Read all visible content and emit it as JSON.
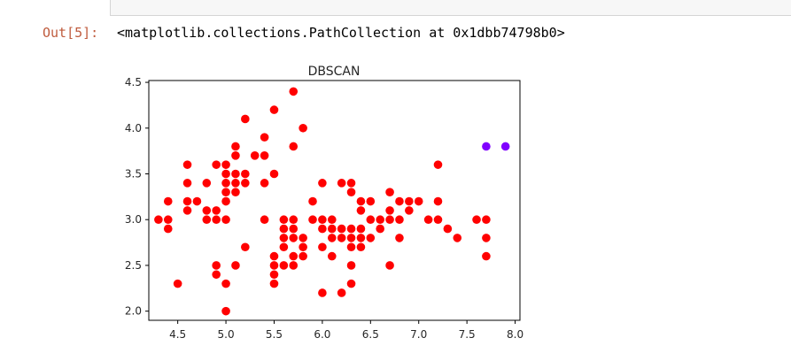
{
  "notebook": {
    "output_prompt": "Out[5]:",
    "output_text": "<matplotlib.collections.PathCollection at 0x1dbb74798b0>"
  },
  "colors": {
    "prompt": "#bf5b3d",
    "cluster_main": "#ff0000",
    "cluster_noise": "#8000ff"
  },
  "chart_data": {
    "type": "scatter",
    "title": "DBSCAN",
    "xlabel": "",
    "ylabel": "",
    "xlim": [
      4.2,
      8.05
    ],
    "ylim": [
      1.9,
      4.52
    ],
    "xticks": [
      "4.5",
      "5.0",
      "5.5",
      "6.0",
      "6.5",
      "7.0",
      "7.5",
      "8.0"
    ],
    "yticks": [
      "2.0",
      "2.5",
      "3.0",
      "3.5",
      "4.0",
      "4.5"
    ],
    "series": [
      {
        "color": "#ff0000",
        "points": [
          [
            4.3,
            3.0
          ],
          [
            4.4,
            2.9
          ],
          [
            4.4,
            3.0
          ],
          [
            4.4,
            3.2
          ],
          [
            4.5,
            2.3
          ],
          [
            4.6,
            3.1
          ],
          [
            4.6,
            3.2
          ],
          [
            4.6,
            3.4
          ],
          [
            4.6,
            3.6
          ],
          [
            4.7,
            3.2
          ],
          [
            4.8,
            3.0
          ],
          [
            4.8,
            3.1
          ],
          [
            4.8,
            3.4
          ],
          [
            4.9,
            2.4
          ],
          [
            4.9,
            2.5
          ],
          [
            4.9,
            3.0
          ],
          [
            4.9,
            3.1
          ],
          [
            4.9,
            3.6
          ],
          [
            5.0,
            2.0
          ],
          [
            5.0,
            2.3
          ],
          [
            5.0,
            3.0
          ],
          [
            5.0,
            3.2
          ],
          [
            5.0,
            3.3
          ],
          [
            5.0,
            3.4
          ],
          [
            5.0,
            3.5
          ],
          [
            5.0,
            3.6
          ],
          [
            5.1,
            2.5
          ],
          [
            5.1,
            3.3
          ],
          [
            5.1,
            3.4
          ],
          [
            5.1,
            3.5
          ],
          [
            5.1,
            3.7
          ],
          [
            5.1,
            3.8
          ],
          [
            5.2,
            2.7
          ],
          [
            5.2,
            3.4
          ],
          [
            5.2,
            3.5
          ],
          [
            5.2,
            4.1
          ],
          [
            5.3,
            3.7
          ],
          [
            5.4,
            3.0
          ],
          [
            5.4,
            3.4
          ],
          [
            5.4,
            3.7
          ],
          [
            5.4,
            3.9
          ],
          [
            5.5,
            2.3
          ],
          [
            5.5,
            2.4
          ],
          [
            5.5,
            2.5
          ],
          [
            5.5,
            2.6
          ],
          [
            5.5,
            3.5
          ],
          [
            5.5,
            4.2
          ],
          [
            5.6,
            2.5
          ],
          [
            5.6,
            2.7
          ],
          [
            5.6,
            2.8
          ],
          [
            5.6,
            2.9
          ],
          [
            5.6,
            3.0
          ],
          [
            5.7,
            2.5
          ],
          [
            5.7,
            2.6
          ],
          [
            5.7,
            2.8
          ],
          [
            5.7,
            2.9
          ],
          [
            5.7,
            3.0
          ],
          [
            5.7,
            3.8
          ],
          [
            5.7,
            4.4
          ],
          [
            5.8,
            2.6
          ],
          [
            5.8,
            2.7
          ],
          [
            5.8,
            2.8
          ],
          [
            5.8,
            4.0
          ],
          [
            5.9,
            3.0
          ],
          [
            5.9,
            3.2
          ],
          [
            6.0,
            2.2
          ],
          [
            6.0,
            2.7
          ],
          [
            6.0,
            2.9
          ],
          [
            6.0,
            3.0
          ],
          [
            6.0,
            3.4
          ],
          [
            6.1,
            2.6
          ],
          [
            6.1,
            2.8
          ],
          [
            6.1,
            2.9
          ],
          [
            6.1,
            3.0
          ],
          [
            6.2,
            2.2
          ],
          [
            6.2,
            2.8
          ],
          [
            6.2,
            2.9
          ],
          [
            6.2,
            3.4
          ],
          [
            6.3,
            2.3
          ],
          [
            6.3,
            2.5
          ],
          [
            6.3,
            2.7
          ],
          [
            6.3,
            2.8
          ],
          [
            6.3,
            2.9
          ],
          [
            6.3,
            3.3
          ],
          [
            6.3,
            3.4
          ],
          [
            6.4,
            2.7
          ],
          [
            6.4,
            2.8
          ],
          [
            6.4,
            2.9
          ],
          [
            6.4,
            3.1
          ],
          [
            6.4,
            3.2
          ],
          [
            6.5,
            2.8
          ],
          [
            6.5,
            3.0
          ],
          [
            6.5,
            3.2
          ],
          [
            6.6,
            2.9
          ],
          [
            6.6,
            3.0
          ],
          [
            6.7,
            2.5
          ],
          [
            6.7,
            3.0
          ],
          [
            6.7,
            3.1
          ],
          [
            6.7,
            3.3
          ],
          [
            6.8,
            2.8
          ],
          [
            6.8,
            3.0
          ],
          [
            6.8,
            3.2
          ],
          [
            6.9,
            3.1
          ],
          [
            6.9,
            3.2
          ],
          [
            7.0,
            3.2
          ],
          [
            7.1,
            3.0
          ],
          [
            7.2,
            3.0
          ],
          [
            7.2,
            3.2
          ],
          [
            7.2,
            3.6
          ],
          [
            7.3,
            2.9
          ],
          [
            7.4,
            2.8
          ],
          [
            7.6,
            3.0
          ],
          [
            7.7,
            2.6
          ],
          [
            7.7,
            2.8
          ],
          [
            7.7,
            3.0
          ]
        ]
      },
      {
        "color": "#8000ff",
        "points": [
          [
            7.7,
            3.8
          ],
          [
            7.9,
            3.8
          ]
        ]
      }
    ]
  }
}
